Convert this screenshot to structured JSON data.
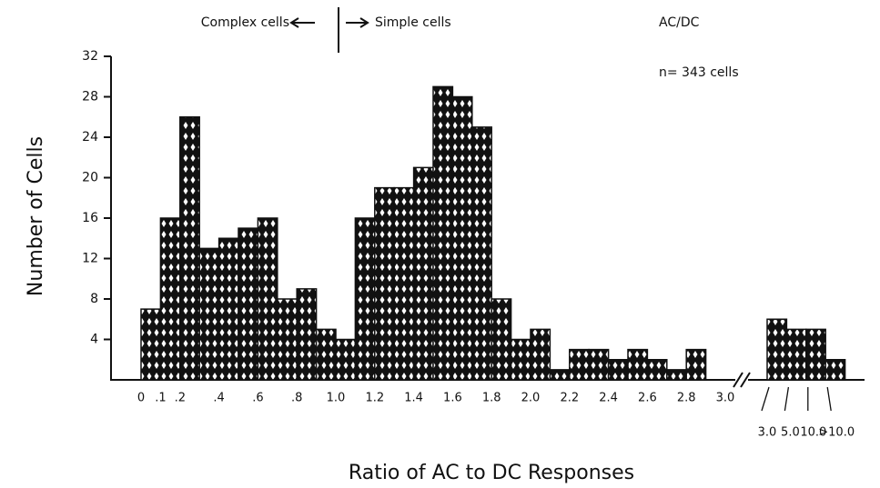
{
  "chart_data": {
    "type": "histogram",
    "annotations": [
      "Complex cells",
      "Simple cells",
      "AC/DC",
      "n= 343 cells"
    ],
    "xlabel": "Ratio of AC to DC Responses",
    "ylabel": "Number of Cells",
    "bins": [
      0,
      0.1,
      0.2,
      0.3,
      0.4,
      0.5,
      0.6,
      0.7,
      0.8,
      0.9,
      1.0,
      1.1,
      1.2,
      1.3,
      1.4,
      1.5,
      1.6,
      1.7,
      1.8,
      1.9,
      2.0,
      2.1,
      2.2,
      2.3,
      2.4,
      2.5,
      2.6,
      2.7,
      2.8,
      2.9,
      3.0
    ],
    "values": [
      7,
      16,
      26,
      13,
      14,
      15,
      16,
      8,
      9,
      5,
      4,
      16,
      19,
      19,
      21,
      29,
      28,
      25,
      8,
      4,
      5,
      1,
      3,
      3,
      2,
      3,
      2,
      1,
      3,
      0
    ],
    "xlim": [
      0,
      3.0
    ],
    "xticks": [
      0,
      {
        "value": 0.1,
        "label": ".1"
      },
      {
        "value": 0.2,
        "label": ".2"
      },
      {
        "value": 0.4,
        "label": ".4"
      },
      {
        "value": 0.6,
        "label": ".6"
      },
      {
        "value": 0.8,
        "label": ".8"
      },
      {
        "value": 1.0,
        "label": "1.0"
      },
      1.2,
      1.4,
      1.6,
      1.8,
      {
        "value": 2.0,
        "label": "2.0"
      },
      2.2,
      2.4,
      2.6,
      2.8,
      {
        "value": 3.0,
        "label": "3.0"
      }
    ],
    "ylim": [
      0,
      32
    ],
    "yticks": [
      4,
      8,
      12,
      16,
      20,
      24,
      28,
      32
    ],
    "extra_bins": {
      "categories": [
        "3.0",
        "5.0",
        "10.0",
        ">10.0"
      ],
      "values": [
        6,
        5,
        5,
        2
      ]
    }
  }
}
